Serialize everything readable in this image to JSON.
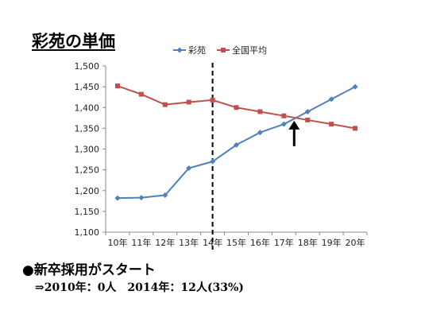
{
  "slide": {
    "title": "彩苑の単価",
    "bullet": "●新卒採用がスタート",
    "detail": "⇒2010年：0人　2014年：12人(33%)"
  },
  "chart_data": {
    "type": "line",
    "categories": [
      "10年",
      "11年",
      "12年",
      "13年",
      "14年",
      "15年",
      "16年",
      "17年",
      "18年",
      "19年",
      "20年"
    ],
    "series": [
      {
        "name": "彩苑",
        "color": "#4f81bd",
        "marker": "diamond",
        "values": [
          1182,
          1183,
          1189,
          1254,
          1270,
          1310,
          1340,
          1360,
          1390,
          1420,
          1450
        ]
      },
      {
        "name": "全国平均",
        "color": "#c0504d",
        "marker": "square",
        "values": [
          1452,
          1432,
          1407,
          1413,
          1418,
          1400,
          1390,
          1380,
          1370,
          1360,
          1350
        ]
      }
    ],
    "ylim": [
      1100,
      1500
    ],
    "yticks": [
      "1,100",
      "1,150",
      "1,200",
      "1,250",
      "1,300",
      "1,350",
      "1,400",
      "1,450",
      "1,500"
    ],
    "grid": false,
    "legend": "top",
    "annotations": {
      "dashed_vline_at": "14年",
      "arrow_up_at": "17.5年 (crossover)"
    }
  }
}
